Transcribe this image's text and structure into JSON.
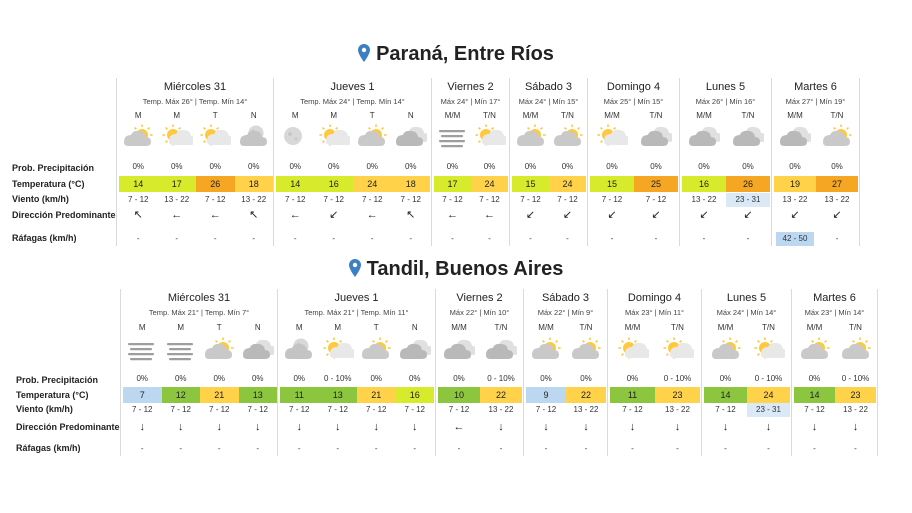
{
  "row_labels": {
    "prob": "Prob. Precipitación",
    "temp": "Temperatura (°C)",
    "wind": "Viento (km/h)",
    "dir": "Dirección Predominante",
    "gust": "Ráfagas (km/h)"
  },
  "colors": {
    "cold": "#bcd8f0",
    "cool": "#8cc63f",
    "mild": "#d7ea2b",
    "warm": "#ffd24a",
    "hot": "#f5a623",
    "calm": "#dbe9f7"
  },
  "locations": [
    {
      "name": "Paraná, Entre Ríos",
      "days": [
        {
          "name": "Miércoles 31",
          "sub": "Temp. Máx 26° | Temp. Mín 14°",
          "periods": [
            {
              "p": "M",
              "icon": "cloud-sun-icon",
              "prob": "0%",
              "temp": "14",
              "tc": "mild",
              "wind": "7 - 12",
              "dir": "↖",
              "gust": "-"
            },
            {
              "p": "M",
              "icon": "sun-cloud-icon",
              "prob": "0%",
              "temp": "17",
              "tc": "mild",
              "wind": "13 - 22",
              "dir": "←",
              "gust": "-"
            },
            {
              "p": "T",
              "icon": "sun-cloud-icon",
              "prob": "0%",
              "temp": "26",
              "tc": "hot",
              "wind": "7 - 12",
              "dir": "←",
              "gust": "-"
            },
            {
              "p": "N",
              "icon": "cloud-moon-icon",
              "prob": "0%",
              "temp": "18",
              "tc": "warm",
              "wind": "13 - 22",
              "dir": "↖",
              "gust": "-"
            }
          ]
        },
        {
          "name": "Jueves 1",
          "sub": "Temp. Máx 24° | Temp. Mín 14°",
          "periods": [
            {
              "p": "M",
              "icon": "moon-icon",
              "prob": "0%",
              "temp": "14",
              "tc": "mild",
              "wind": "7 - 12",
              "dir": "←",
              "gust": "-"
            },
            {
              "p": "M",
              "icon": "sun-cloud-icon",
              "prob": "0%",
              "temp": "16",
              "tc": "mild",
              "wind": "7 - 12",
              "dir": "↙",
              "gust": "-"
            },
            {
              "p": "T",
              "icon": "cloud-sun-icon",
              "prob": "0%",
              "temp": "24",
              "tc": "warm",
              "wind": "7 - 12",
              "dir": "←",
              "gust": "-"
            },
            {
              "p": "N",
              "icon": "cloud-icon",
              "prob": "0%",
              "temp": "18",
              "tc": "warm",
              "wind": "7 - 12",
              "dir": "↖",
              "gust": "-"
            }
          ]
        },
        {
          "name": "Viernes 2",
          "sub": "Máx 24° | Mín 17°",
          "periods": [
            {
              "p": "M/M",
              "icon": "fog-icon",
              "prob": "0%",
              "temp": "17",
              "tc": "mild",
              "wind": "7 - 12",
              "dir": "←",
              "gust": "-"
            },
            {
              "p": "T/N",
              "icon": "sun-cloud-icon",
              "prob": "0%",
              "temp": "24",
              "tc": "warm",
              "wind": "7 - 12",
              "dir": "←",
              "gust": "-"
            }
          ]
        },
        {
          "name": "Sábado 3",
          "sub": "Máx 24° | Mín 15°",
          "periods": [
            {
              "p": "M/M",
              "icon": "cloud-sun-icon",
              "prob": "0%",
              "temp": "15",
              "tc": "mild",
              "wind": "7 - 12",
              "dir": "↙",
              "gust": "-"
            },
            {
              "p": "T/N",
              "icon": "cloud-sun-icon",
              "prob": "0%",
              "temp": "24",
              "tc": "warm",
              "wind": "7 - 12",
              "dir": "↙",
              "gust": "-"
            }
          ]
        },
        {
          "name": "Domingo 4",
          "sub": "Máx 25° | Mín 15°",
          "periods": [
            {
              "p": "M/M",
              "icon": "sun-cloud-icon",
              "prob": "0%",
              "temp": "15",
              "tc": "mild",
              "wind": "7 - 12",
              "dir": "↙",
              "gust": "-"
            },
            {
              "p": "T/N",
              "icon": "cloud-icon",
              "prob": "0%",
              "temp": "25",
              "tc": "hot",
              "wind": "7 - 12",
              "dir": "↙",
              "gust": "-"
            }
          ]
        },
        {
          "name": "Lunes 5",
          "sub": "Máx 26° | Mín 16°",
          "periods": [
            {
              "p": "M/M",
              "icon": "cloud-icon",
              "prob": "0%",
              "temp": "16",
              "tc": "mild",
              "wind": "13 - 22",
              "dir": "↙",
              "gust": "-"
            },
            {
              "p": "T/N",
              "icon": "cloud-icon",
              "prob": "0%",
              "temp": "26",
              "tc": "hot",
              "wind": "23 - 31",
              "wc": "calm",
              "dir": "↙",
              "gust": "-"
            }
          ]
        },
        {
          "name": "Martes 6",
          "sub": "Máx 27° | Mín 19°",
          "periods": [
            {
              "p": "M/M",
              "icon": "cloud-icon",
              "prob": "0%",
              "temp": "19",
              "tc": "warm",
              "wind": "13 - 22",
              "dir": "↙",
              "gust": "42 - 50",
              "gc": "cold"
            },
            {
              "p": "T/N",
              "icon": "cloud-sun-icon",
              "prob": "0%",
              "temp": "27",
              "tc": "hot",
              "wind": "13 - 22",
              "dir": "↙",
              "gust": "-"
            }
          ]
        }
      ]
    },
    {
      "name": "Tandil, Buenos Aires",
      "days": [
        {
          "name": "Miércoles 31",
          "sub": "Temp. Máx 21° | Temp. Mín 7°",
          "periods": [
            {
              "p": "M",
              "icon": "fog-icon",
              "prob": "0%",
              "temp": "7",
              "tc": "cold",
              "wind": "7 - 12",
              "dir": "↓",
              "gust": "-"
            },
            {
              "p": "M",
              "icon": "fog-icon",
              "prob": "0%",
              "temp": "12",
              "tc": "cool",
              "wind": "7 - 12",
              "dir": "↓",
              "gust": "-"
            },
            {
              "p": "T",
              "icon": "cloud-sun-icon",
              "prob": "0%",
              "temp": "21",
              "tc": "warm",
              "wind": "7 - 12",
              "dir": "↓",
              "gust": "-"
            },
            {
              "p": "N",
              "icon": "cloud-icon",
              "prob": "0%",
              "temp": "13",
              "tc": "cool",
              "wind": "7 - 12",
              "dir": "↓",
              "gust": "-"
            }
          ]
        },
        {
          "name": "Jueves 1",
          "sub": "Temp. Máx 21° | Temp. Mín 11°",
          "periods": [
            {
              "p": "M",
              "icon": "cloud-moon-icon",
              "prob": "0%",
              "temp": "11",
              "tc": "cool",
              "wind": "7 - 12",
              "dir": "↓",
              "gust": "-"
            },
            {
              "p": "M",
              "icon": "sun-cloud-icon",
              "prob": "0 - 10%",
              "temp": "13",
              "tc": "cool",
              "wind": "7 - 12",
              "dir": "↓",
              "gust": "-"
            },
            {
              "p": "T",
              "icon": "cloud-sun-icon",
              "prob": "0%",
              "temp": "21",
              "tc": "warm",
              "wind": "7 - 12",
              "dir": "↓",
              "gust": "-"
            },
            {
              "p": "N",
              "icon": "cloud-icon",
              "prob": "0%",
              "temp": "16",
              "tc": "mild",
              "wind": "7 - 12",
              "dir": "↓",
              "gust": "-"
            }
          ]
        },
        {
          "name": "Viernes 2",
          "sub": "Máx 22° | Mín 10°",
          "periods": [
            {
              "p": "M/M",
              "icon": "cloud-icon",
              "prob": "0%",
              "temp": "10",
              "tc": "cool",
              "wind": "7 - 12",
              "dir": "←",
              "gust": "-"
            },
            {
              "p": "T/N",
              "icon": "cloud-icon",
              "prob": "0 - 10%",
              "temp": "22",
              "tc": "warm",
              "wind": "13 - 22",
              "dir": "↓",
              "gust": "-"
            }
          ]
        },
        {
          "name": "Sábado 3",
          "sub": "Máx 22° | Mín 9°",
          "periods": [
            {
              "p": "M/M",
              "icon": "cloud-sun-icon",
              "prob": "0%",
              "temp": "9",
              "tc": "cold",
              "wind": "7 - 12",
              "dir": "↓",
              "gust": "-"
            },
            {
              "p": "T/N",
              "icon": "cloud-sun-icon",
              "prob": "0%",
              "temp": "22",
              "tc": "warm",
              "wind": "13 - 22",
              "dir": "↓",
              "gust": "-"
            }
          ]
        },
        {
          "name": "Domingo 4",
          "sub": "Máx 23° | Mín 11°",
          "periods": [
            {
              "p": "M/M",
              "icon": "sun-cloud-icon",
              "prob": "0%",
              "temp": "11",
              "tc": "cool",
              "wind": "7 - 12",
              "dir": "↓",
              "gust": "-"
            },
            {
              "p": "T/N",
              "icon": "sun-cloud-icon",
              "prob": "0 - 10%",
              "temp": "23",
              "tc": "warm",
              "wind": "13 - 22",
              "dir": "↓",
              "gust": "-"
            }
          ]
        },
        {
          "name": "Lunes 5",
          "sub": "Máx 24° | Mín 14°",
          "periods": [
            {
              "p": "M/M",
              "icon": "cloud-sun-icon",
              "prob": "0%",
              "temp": "14",
              "tc": "cool",
              "wind": "7 - 12",
              "dir": "↓",
              "gust": "-"
            },
            {
              "p": "T/N",
              "icon": "sun-cloud-icon",
              "prob": "0 - 10%",
              "temp": "24",
              "tc": "warm",
              "wind": "23 - 31",
              "wc": "calm",
              "dir": "↓",
              "gust": "-"
            }
          ]
        },
        {
          "name": "Martes 6",
          "sub": "Máx 23° | Mín 14°",
          "periods": [
            {
              "p": "M/M",
              "icon": "cloud-sun-icon",
              "prob": "0%",
              "temp": "14",
              "tc": "cool",
              "wind": "7 - 12",
              "dir": "↓",
              "gust": "-"
            },
            {
              "p": "T/N",
              "icon": "cloud-sun-icon",
              "prob": "0 - 10%",
              "temp": "23",
              "tc": "warm",
              "wind": "13 - 22",
              "dir": "↓",
              "gust": "-"
            }
          ]
        }
      ]
    }
  ]
}
